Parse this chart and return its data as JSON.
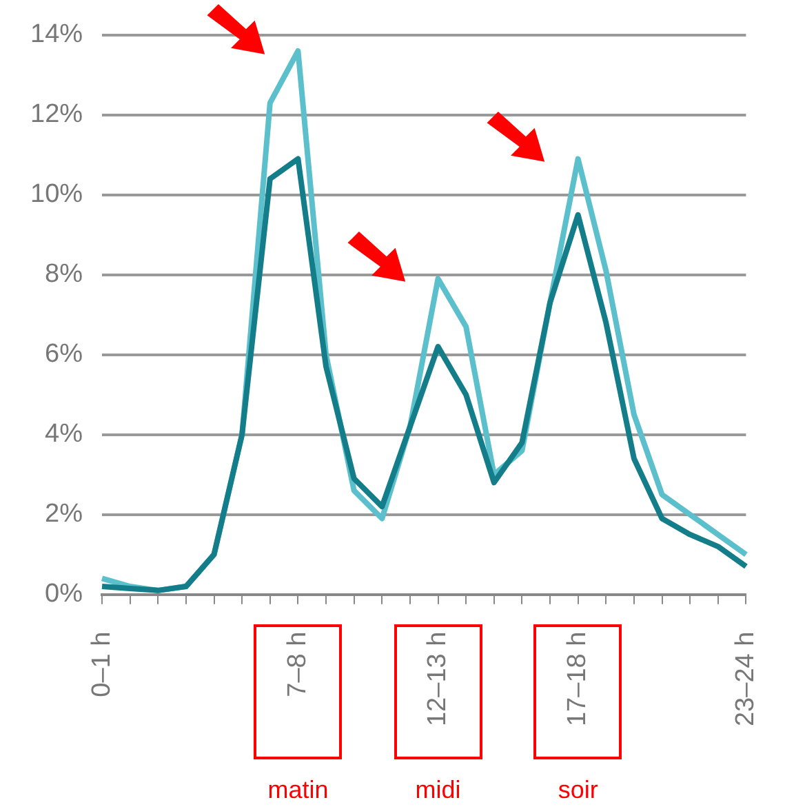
{
  "chart_data": {
    "type": "line",
    "categories": [
      "0–1 h",
      null,
      null,
      null,
      null,
      null,
      null,
      "7–8 h",
      null,
      null,
      null,
      null,
      "12–13 h",
      null,
      null,
      null,
      null,
      "17–18 h",
      null,
      null,
      null,
      null,
      null,
      "23–24 h"
    ],
    "series": [
      {
        "color": "#5bbfcc",
        "values": [
          0.4,
          0.2,
          0.1,
          0.2,
          1.0,
          4.0,
          12.3,
          13.6,
          6.0,
          2.6,
          1.9,
          4.2,
          7.9,
          6.7,
          3.0,
          3.6,
          7.3,
          10.9,
          8.1,
          4.5,
          2.5,
          2.0,
          1.5,
          1.0
        ]
      },
      {
        "color": "#137d8a",
        "values": [
          0.2,
          0.15,
          0.1,
          0.2,
          1.0,
          4.0,
          10.4,
          10.9,
          5.7,
          2.9,
          2.2,
          4.2,
          6.2,
          5.0,
          2.8,
          3.8,
          7.3,
          9.5,
          6.8,
          3.4,
          1.9,
          1.5,
          1.2,
          0.7
        ]
      }
    ],
    "ylim": [
      0,
      14
    ],
    "yticks": [
      {
        "value": 0,
        "label": "0%"
      },
      {
        "value": 2,
        "label": "2%"
      },
      {
        "value": 4,
        "label": "4%"
      },
      {
        "value": 6,
        "label": "6%"
      },
      {
        "value": 8,
        "label": "8%"
      },
      {
        "value": 10,
        "label": "10%"
      },
      {
        "value": 12,
        "label": "12%"
      },
      {
        "value": 14,
        "label": "14%"
      }
    ],
    "grid": "y",
    "legend": false,
    "marker": "none",
    "line_style": "solid",
    "annotations": [
      "matin",
      "midi",
      "soir"
    ]
  }
}
